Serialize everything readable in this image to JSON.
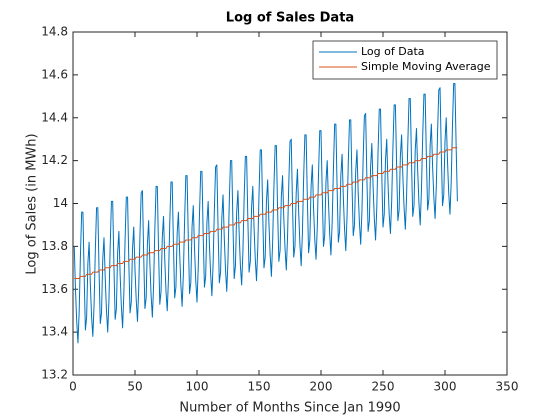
{
  "chart_data": {
    "type": "line",
    "title": "Log of Sales Data",
    "x_label": "Number of Months Since Jan 1990",
    "y_label": "Log of Sales (in MWh)",
    "xlim": [
      0,
      350
    ],
    "xticks": [
      0,
      50,
      100,
      150,
      200,
      250,
      300,
      350
    ],
    "ylim": [
      13.2,
      14.8
    ],
    "yticks": [
      13.2,
      13.4,
      13.6,
      13.8,
      14,
      14.2,
      14.4,
      14.6,
      14.8
    ],
    "grid": false,
    "legend": "northeast",
    "x": [
      1,
      2,
      3,
      4,
      5,
      6,
      7,
      8,
      9,
      10,
      11,
      12,
      13,
      14,
      15,
      16,
      17,
      18,
      19,
      20,
      21,
      22,
      23,
      24,
      25,
      26,
      27,
      28,
      29,
      30,
      31,
      32,
      33,
      34,
      35,
      36,
      37,
      38,
      39,
      40,
      41,
      42,
      43,
      44,
      45,
      46,
      47,
      48,
      49,
      50,
      51,
      52,
      53,
      54,
      55,
      56,
      57,
      58,
      59,
      60,
      61,
      62,
      63,
      64,
      65,
      66,
      67,
      68,
      69,
      70,
      71,
      72,
      73,
      74,
      75,
      76,
      77,
      78,
      79,
      80,
      81,
      82,
      83,
      84,
      85,
      86,
      87,
      88,
      89,
      90,
      91,
      92,
      93,
      94,
      95,
      96,
      97,
      98,
      99,
      100,
      101,
      102,
      103,
      104,
      105,
      106,
      107,
      108,
      109,
      110,
      111,
      112,
      113,
      114,
      115,
      116,
      117,
      118,
      119,
      120,
      121,
      122,
      123,
      124,
      125,
      126,
      127,
      128,
      129,
      130,
      131,
      132,
      133,
      134,
      135,
      136,
      137,
      138,
      139,
      140,
      141,
      142,
      143,
      144,
      145,
      146,
      147,
      148,
      149,
      150,
      151,
      152,
      153,
      154,
      155,
      156,
      157,
      158,
      159,
      160,
      161,
      162,
      163,
      164,
      165,
      166,
      167,
      168,
      169,
      170,
      171,
      172,
      173,
      174,
      175,
      176,
      177,
      178,
      179,
      180,
      181,
      182,
      183,
      184,
      185,
      186,
      187,
      188,
      189,
      190,
      191,
      192,
      193,
      194,
      195,
      196,
      197,
      198,
      199,
      200,
      201,
      202,
      203,
      204,
      205,
      206,
      207,
      208,
      209,
      210,
      211,
      212,
      213,
      214,
      215,
      216,
      217,
      218,
      219,
      220,
      221,
      222,
      223,
      224,
      225,
      226,
      227,
      228,
      229,
      230,
      231,
      232,
      233,
      234,
      235,
      236,
      237,
      238,
      239,
      240,
      241,
      242,
      243,
      244,
      245,
      246,
      247,
      248,
      249,
      250,
      251,
      252,
      253,
      254,
      255,
      256,
      257,
      258,
      259,
      260,
      261,
      262,
      263,
      264,
      265,
      266,
      267,
      268,
      269,
      270,
      271,
      272,
      273,
      274,
      275,
      276,
      277,
      278,
      279,
      280,
      281,
      282,
      283,
      284,
      285,
      286,
      287,
      288,
      289,
      290,
      291,
      292,
      293,
      294,
      295,
      296,
      297,
      298,
      299,
      300,
      301,
      302,
      303,
      304,
      305,
      306,
      307,
      308,
      309,
      310
    ],
    "series": [
      {
        "name": "Log of Data",
        "color": "#0072BD",
        "values": [
          13.8,
          13.6,
          13.45,
          13.35,
          13.5,
          13.76,
          13.96,
          13.96,
          13.66,
          13.41,
          13.47,
          13.72,
          13.82,
          13.62,
          13.47,
          13.38,
          13.53,
          13.78,
          13.98,
          13.98,
          13.69,
          13.44,
          13.49,
          13.74,
          13.84,
          13.65,
          13.5,
          13.4,
          13.55,
          13.8,
          14.01,
          14.01,
          13.71,
          13.46,
          13.51,
          13.77,
          13.87,
          13.67,
          13.52,
          13.42,
          13.58,
          13.83,
          14.03,
          14.03,
          13.73,
          13.49,
          13.54,
          13.79,
          13.89,
          13.69,
          13.55,
          13.45,
          13.6,
          13.85,
          14.05,
          14.06,
          13.76,
          13.51,
          13.56,
          13.81,
          13.92,
          13.72,
          13.57,
          13.47,
          13.62,
          13.88,
          14.08,
          14.08,
          13.78,
          13.53,
          13.59,
          13.84,
          13.94,
          13.74,
          13.59,
          13.5,
          13.65,
          13.9,
          14.1,
          14.1,
          13.81,
          13.56,
          13.61,
          13.86,
          13.96,
          13.77,
          13.62,
          13.52,
          13.67,
          13.92,
          14.13,
          14.13,
          13.83,
          13.58,
          13.63,
          13.89,
          13.99,
          13.79,
          13.64,
          13.54,
          13.7,
          13.95,
          14.15,
          14.15,
          13.85,
          13.61,
          13.66,
          13.91,
          14.01,
          13.81,
          13.67,
          13.57,
          13.72,
          13.97,
          14.17,
          14.18,
          13.88,
          13.63,
          13.68,
          13.93,
          14.04,
          13.84,
          13.69,
          13.59,
          13.74,
          14.0,
          14.2,
          14.2,
          13.9,
          13.65,
          13.71,
          13.96,
          14.06,
          13.86,
          13.71,
          13.62,
          13.77,
          14.02,
          14.22,
          14.22,
          13.93,
          13.68,
          13.73,
          13.98,
          14.08,
          13.89,
          13.74,
          13.64,
          13.79,
          14.04,
          14.25,
          14.25,
          13.95,
          13.7,
          13.75,
          14.01,
          14.11,
          13.91,
          13.76,
          13.66,
          13.82,
          14.07,
          14.27,
          14.27,
          13.97,
          13.73,
          13.78,
          14.03,
          14.13,
          13.93,
          13.79,
          13.69,
          13.84,
          14.09,
          14.29,
          14.3,
          14.0,
          13.75,
          13.8,
          14.05,
          14.16,
          13.96,
          13.81,
          13.71,
          13.86,
          14.12,
          14.32,
          14.32,
          14.02,
          13.77,
          13.83,
          14.08,
          14.18,
          13.98,
          13.83,
          13.74,
          13.89,
          14.14,
          14.34,
          14.34,
          14.05,
          13.8,
          13.85,
          14.1,
          14.2,
          14.01,
          13.86,
          13.76,
          13.91,
          14.16,
          14.37,
          14.37,
          14.07,
          13.82,
          13.87,
          14.13,
          14.23,
          14.03,
          13.88,
          13.78,
          13.94,
          14.19,
          14.39,
          14.39,
          14.09,
          13.85,
          13.9,
          14.15,
          14.25,
          14.05,
          13.91,
          13.81,
          13.96,
          14.21,
          14.41,
          14.42,
          14.12,
          13.87,
          13.92,
          14.17,
          14.28,
          14.08,
          13.93,
          13.83,
          13.98,
          14.24,
          14.44,
          14.44,
          14.14,
          13.89,
          13.95,
          14.2,
          14.3,
          14.1,
          13.95,
          13.86,
          14.01,
          14.26,
          14.46,
          14.46,
          14.17,
          13.92,
          13.97,
          14.22,
          14.32,
          14.13,
          13.98,
          13.88,
          14.03,
          14.28,
          14.49,
          14.49,
          14.19,
          13.94,
          13.99,
          14.25,
          14.35,
          14.15,
          14.0,
          13.9,
          14.06,
          14.31,
          14.51,
          14.51,
          14.21,
          13.97,
          14.02,
          14.27,
          14.37,
          14.17,
          14.03,
          13.93,
          14.08,
          14.33,
          14.53,
          14.54,
          14.24,
          13.99,
          14.04,
          14.29,
          14.4,
          14.2,
          14.05,
          13.95,
          14.1,
          14.36,
          14.56,
          14.56,
          14.26,
          14.01
        ]
      },
      {
        "name": "Simple Moving Average",
        "color": "#D95319",
        "values": [
          13.65,
          13.65,
          13.65,
          13.65,
          13.65,
          13.66,
          13.66,
          13.66,
          13.66,
          13.66,
          13.67,
          13.67,
          13.67,
          13.67,
          13.67,
          13.68,
          13.68,
          13.68,
          13.68,
          13.68,
          13.69,
          13.69,
          13.69,
          13.69,
          13.69,
          13.7,
          13.7,
          13.7,
          13.7,
          13.7,
          13.71,
          13.71,
          13.71,
          13.71,
          13.71,
          13.72,
          13.72,
          13.72,
          13.72,
          13.72,
          13.73,
          13.73,
          13.73,
          13.73,
          13.73,
          13.74,
          13.74,
          13.74,
          13.74,
          13.74,
          13.75,
          13.75,
          13.75,
          13.75,
          13.75,
          13.76,
          13.76,
          13.76,
          13.76,
          13.76,
          13.77,
          13.77,
          13.77,
          13.77,
          13.77,
          13.78,
          13.78,
          13.78,
          13.78,
          13.78,
          13.79,
          13.79,
          13.79,
          13.79,
          13.79,
          13.8,
          13.8,
          13.8,
          13.8,
          13.8,
          13.81,
          13.81,
          13.81,
          13.81,
          13.81,
          13.82,
          13.82,
          13.82,
          13.82,
          13.82,
          13.83,
          13.83,
          13.83,
          13.83,
          13.83,
          13.84,
          13.84,
          13.84,
          13.84,
          13.84,
          13.85,
          13.85,
          13.85,
          13.85,
          13.85,
          13.86,
          13.86,
          13.86,
          13.86,
          13.86,
          13.87,
          13.87,
          13.87,
          13.87,
          13.87,
          13.88,
          13.88,
          13.88,
          13.88,
          13.88,
          13.89,
          13.89,
          13.89,
          13.89,
          13.89,
          13.9,
          13.9,
          13.9,
          13.9,
          13.9,
          13.91,
          13.91,
          13.91,
          13.91,
          13.91,
          13.92,
          13.92,
          13.92,
          13.92,
          13.92,
          13.93,
          13.93,
          13.93,
          13.93,
          13.93,
          13.94,
          13.94,
          13.94,
          13.94,
          13.94,
          13.95,
          13.95,
          13.95,
          13.95,
          13.95,
          13.96,
          13.96,
          13.96,
          13.96,
          13.96,
          13.97,
          13.97,
          13.97,
          13.97,
          13.97,
          13.98,
          13.98,
          13.98,
          13.98,
          13.98,
          13.99,
          13.99,
          13.99,
          13.99,
          13.99,
          14.0,
          14.0,
          14.0,
          14.0,
          14.0,
          14.01,
          14.01,
          14.01,
          14.01,
          14.01,
          14.02,
          14.02,
          14.02,
          14.02,
          14.02,
          14.03,
          14.03,
          14.03,
          14.03,
          14.03,
          14.04,
          14.04,
          14.04,
          14.04,
          14.04,
          14.05,
          14.05,
          14.05,
          14.05,
          14.05,
          14.06,
          14.06,
          14.06,
          14.06,
          14.06,
          14.07,
          14.07,
          14.07,
          14.07,
          14.07,
          14.08,
          14.08,
          14.08,
          14.08,
          14.08,
          14.09,
          14.09,
          14.09,
          14.09,
          14.09,
          14.1,
          14.1,
          14.1,
          14.1,
          14.1,
          14.11,
          14.11,
          14.11,
          14.11,
          14.11,
          14.12,
          14.12,
          14.12,
          14.12,
          14.12,
          14.13,
          14.13,
          14.13,
          14.13,
          14.13,
          14.14,
          14.14,
          14.14,
          14.14,
          14.14,
          14.15,
          14.15,
          14.15,
          14.15,
          14.15,
          14.16,
          14.16,
          14.16,
          14.16,
          14.16,
          14.17,
          14.17,
          14.17,
          14.17,
          14.17,
          14.18,
          14.18,
          14.18,
          14.18,
          14.18,
          14.19,
          14.19,
          14.19,
          14.19,
          14.19,
          14.2,
          14.2,
          14.2,
          14.2,
          14.2,
          14.21,
          14.21,
          14.21,
          14.21,
          14.21,
          14.22,
          14.22,
          14.22,
          14.22,
          14.22,
          14.23,
          14.23,
          14.23,
          14.23,
          14.23,
          14.24,
          14.24,
          14.24,
          14.24,
          14.24,
          14.25,
          14.25,
          14.25,
          14.25,
          14.25,
          14.26,
          14.26,
          14.26,
          14.26,
          14.26
        ]
      }
    ]
  }
}
